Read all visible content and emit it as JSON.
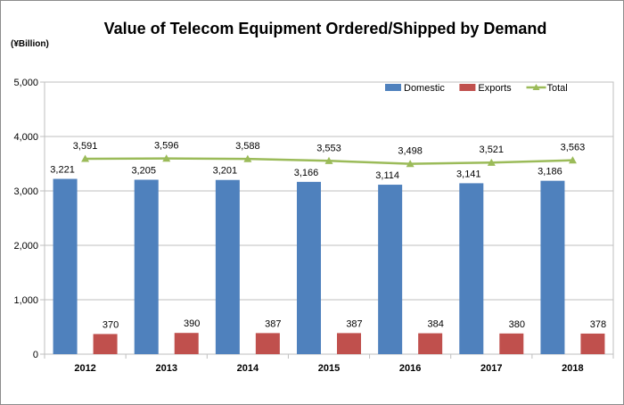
{
  "chart_data": {
    "type": "bar",
    "title": "Value of Telecom  Equipment Ordered/Shipped by Demand",
    "unit_label": "(¥Billion)",
    "categories": [
      "2012",
      "2013",
      "2014",
      "2015",
      "2016",
      "2017",
      "2018"
    ],
    "series": [
      {
        "name": "Domestic",
        "kind": "bar",
        "color": "#4f81bd",
        "values": [
          3221,
          3205,
          3201,
          3166,
          3114,
          3141,
          3186
        ],
        "labels": [
          "3,221",
          "3,205",
          "3,201",
          "3,166",
          "3,114",
          "3,141",
          "3,186"
        ]
      },
      {
        "name": "Exports",
        "kind": "bar",
        "color": "#c0504d",
        "values": [
          370,
          390,
          387,
          387,
          384,
          380,
          378
        ],
        "labels": [
          "370",
          "390",
          "387",
          "387",
          "384",
          "380",
          "378"
        ]
      },
      {
        "name": "Total",
        "kind": "line",
        "color": "#9bbb59",
        "values": [
          3591,
          3596,
          3588,
          3553,
          3498,
          3521,
          3563
        ],
        "labels": [
          "3,591",
          "3,596",
          "3,588",
          "3,553",
          "3,498",
          "3,521",
          "3,563"
        ]
      }
    ],
    "ylim": [
      0,
      5000
    ],
    "yticks": [
      0,
      1000,
      2000,
      3000,
      4000,
      5000
    ],
    "ytick_labels": [
      "0",
      "1,000",
      "2,000",
      "3,000",
      "4,000",
      "5,000"
    ],
    "grid": true,
    "legend_position": "top-right"
  }
}
